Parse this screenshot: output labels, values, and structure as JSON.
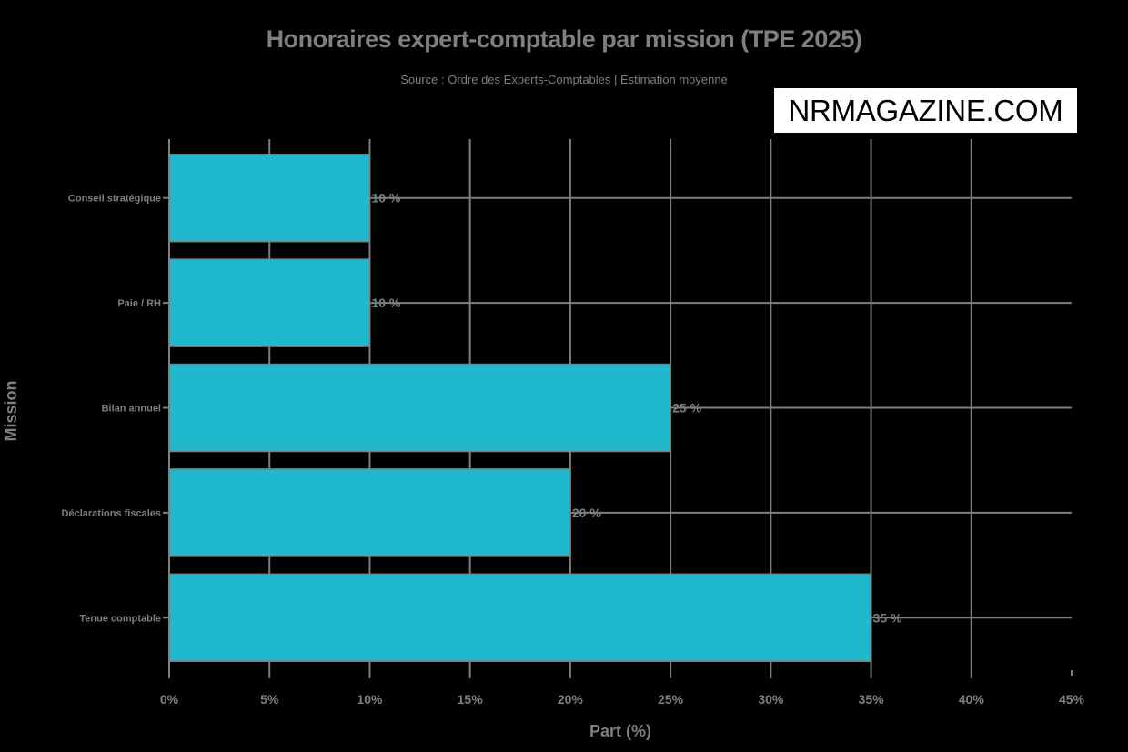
{
  "chart": {
    "title": "Honoraires expert-comptable par mission (TPE 2025)",
    "subtitle": "Source : Ordre des Experts-Comptables | Estimation moyenne",
    "watermark": "NRMAGAZINE.COM",
    "xlabel": "Part (%)",
    "ylabel": "Mission"
  },
  "colors": {
    "background": "#000000",
    "bar": "#20b8cc",
    "grid": "#7f7f7f",
    "text": "#7f7f7f"
  },
  "chart_data": {
    "type": "bar",
    "orientation": "horizontal",
    "title": "Honoraires expert-comptable par mission (TPE 2025)",
    "subtitle": "Source : Ordre des Experts-Comptables | Estimation moyenne",
    "xlabel": "Part (%)",
    "ylabel": "Mission",
    "categories": [
      "Tenue comptable",
      "Déclarations fiscales",
      "Bilan annuel",
      "Paie / RH",
      "Conseil stratégique"
    ],
    "values": [
      35,
      20,
      25,
      10,
      10
    ],
    "data_labels": [
      "35 %",
      "20 %",
      "25 %",
      "10 %",
      "10 %"
    ],
    "xlim": [
      0,
      45
    ],
    "x_ticks": [
      "0%",
      "5%",
      "10%",
      "15%",
      "20%",
      "25%",
      "30%",
      "35%",
      "40%",
      "45%"
    ],
    "grid": true,
    "legend": "none"
  }
}
